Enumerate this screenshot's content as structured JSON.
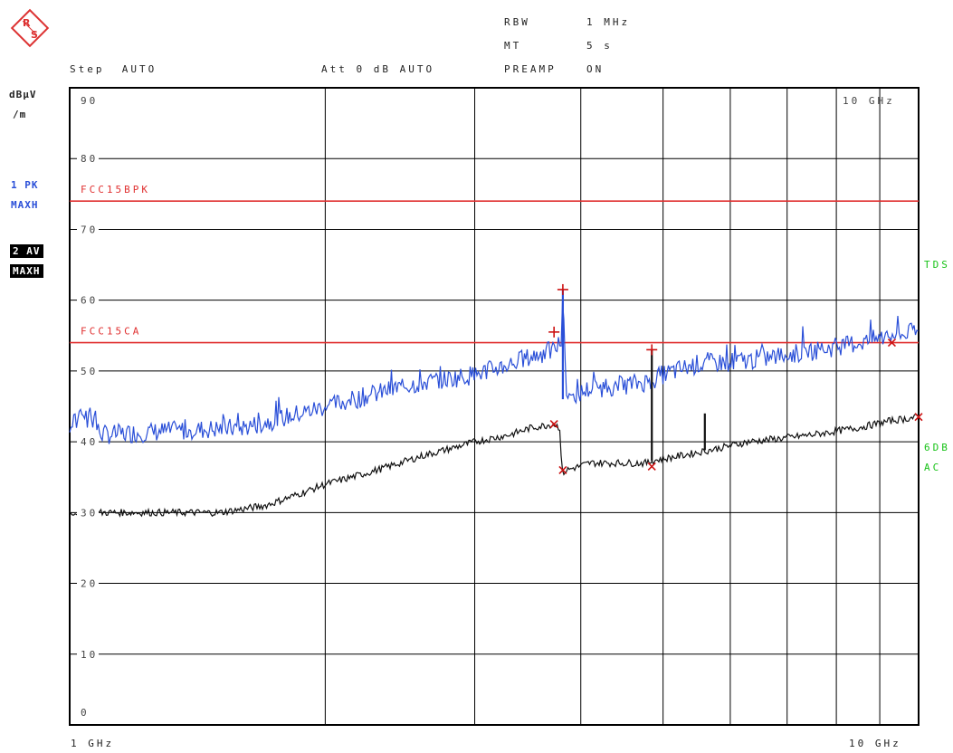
{
  "header": {
    "rbw_label": "RBW",
    "rbw_value": "1 MHz",
    "mt_label": "MT",
    "mt_value": "5 s",
    "step": "Step  AUTO",
    "att": "Att 0 dB AUTO",
    "preamp_label": "PREAMP",
    "preamp_value": "ON"
  },
  "left": {
    "unit_line1": "dBµV",
    "unit_line2": "/m",
    "trace1_line1": "1 PK",
    "trace1_line2": "MAXH",
    "trace2_line1": "2 AV",
    "trace2_line2": "MAXH"
  },
  "right": {
    "tds": "TDS",
    "sixdb": "6DB",
    "ac": "AC"
  },
  "bottom": {
    "start": "1 GHz",
    "stop": "10 GHz"
  },
  "top_right_freq": "10 GHz",
  "logo": {
    "letters": "RS",
    "icon": "rohde-schwarz-logo"
  },
  "colors": {
    "peak": "#2a4fd8",
    "average": "#111111",
    "limit": "#e03030",
    "grid": "#000000",
    "side_label": "#17c217"
  },
  "chart_data": {
    "type": "line",
    "x_scale": "log",
    "x_unit": "GHz",
    "xlim": [
      1,
      10
    ],
    "ylim": [
      0,
      90
    ],
    "y_unit": "dBµV/m",
    "y_ticks": [
      90,
      80,
      70,
      60,
      50,
      40,
      30,
      20,
      10,
      0
    ],
    "x_tick_labels": [
      "1 GHz",
      "10 GHz"
    ],
    "limit_lines": [
      {
        "name": "FCC15BPK",
        "value": 74
      },
      {
        "name": "FCC15CA",
        "value": 54
      }
    ],
    "series": [
      {
        "name": "1 PK",
        "x": [
          1.0,
          1.03,
          1.1,
          1.3,
          1.6,
          2.0,
          2.5,
          3.0,
          3.3,
          3.5,
          3.72,
          3.78,
          3.8,
          3.81,
          3.85,
          4.1,
          4.5,
          4.8,
          5.0,
          5.5,
          6.3,
          7.2,
          8.5,
          9.3,
          10.0
        ],
        "y": [
          41,
          43,
          41,
          41.5,
          42,
          45,
          48,
          49.5,
          51,
          52,
          53,
          54,
          54,
          61.5,
          46,
          47.5,
          48,
          48.5,
          49.5,
          51,
          51.5,
          52.5,
          54,
          55,
          55.5
        ]
      },
      {
        "name": "2 AV",
        "x": [
          1.0,
          1.2,
          1.5,
          1.7,
          2.0,
          2.3,
          2.6,
          3.0,
          3.3,
          3.5,
          3.72,
          3.78,
          3.8,
          3.85,
          4.1,
          4.8,
          4.85,
          5.5,
          6.3,
          7.5,
          8.5,
          9.3,
          10.0
        ],
        "y": [
          30,
          30,
          30,
          31,
          34,
          36,
          38,
          40,
          41,
          42,
          42.5,
          42,
          35.5,
          36,
          37,
          37,
          37.3,
          38.5,
          40,
          41,
          42,
          43,
          43.5
        ]
      }
    ],
    "markers": [
      {
        "series": "1 PK",
        "x": 3.72,
        "y": 55.5,
        "symbol": "+"
      },
      {
        "series": "1 PK",
        "x": 3.81,
        "y": 61.5,
        "symbol": "+"
      },
      {
        "series": "1 PK",
        "x": 4.85,
        "y": 53,
        "symbol": "+"
      },
      {
        "series": "1 PK",
        "x": 9.3,
        "y": 54,
        "symbol": "x"
      },
      {
        "series": "2 AV",
        "x": 3.72,
        "y": 42.5,
        "symbol": "x"
      },
      {
        "series": "2 AV",
        "x": 3.81,
        "y": 36,
        "symbol": "x"
      },
      {
        "series": "2 AV",
        "x": 4.85,
        "y": 36.5,
        "symbol": "x"
      },
      {
        "series": "2 AV",
        "x": 10.0,
        "y": 43.5,
        "symbol": "x"
      }
    ],
    "spikes": [
      {
        "series": "2 AV",
        "x": 4.85,
        "from": 37.3,
        "to": 53
      },
      {
        "series": "2 AV",
        "x": 5.6,
        "from": 38.8,
        "to": 44
      },
      {
        "series": "1 PK",
        "x": 3.81,
        "from": 46,
        "to": 61.5
      }
    ]
  }
}
